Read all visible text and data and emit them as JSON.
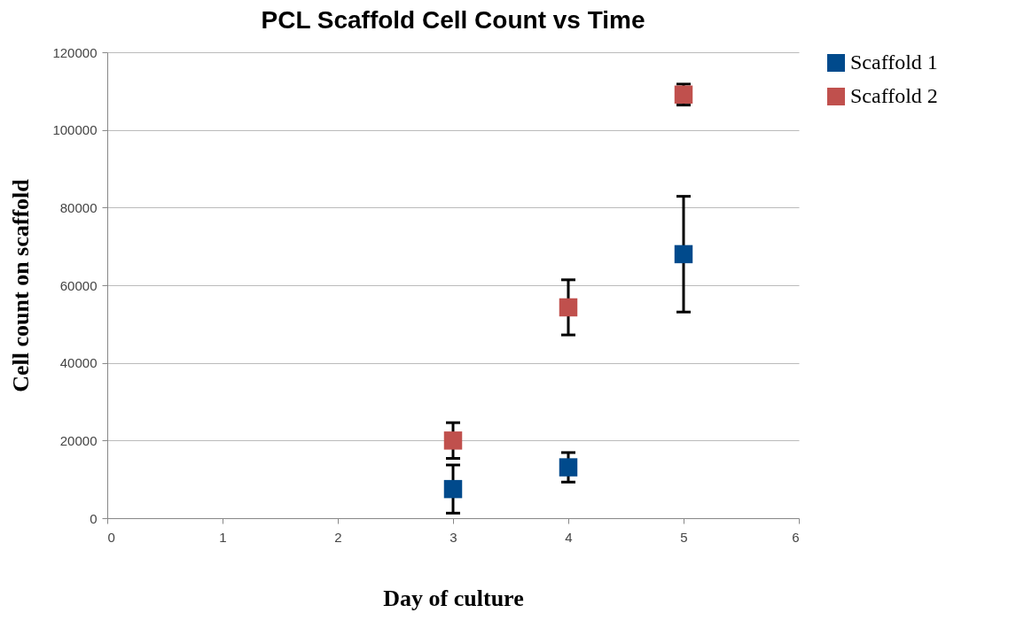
{
  "chart_data": {
    "type": "scatter",
    "title": "PCL Scaffold Cell Count vs Time",
    "xlabel": "Day of culture",
    "ylabel": "Cell count on scaffold",
    "x": [
      3,
      4,
      5
    ],
    "series": [
      {
        "name": "Scaffold 1",
        "color": "#004a8c",
        "values": [
          7500,
          13100,
          68000
        ],
        "errors": [
          6200,
          3800,
          14900
        ]
      },
      {
        "name": "Scaffold 2",
        "color": "#c0504d",
        "values": [
          20000,
          54300,
          109100
        ],
        "errors": [
          4600,
          7100,
          2700
        ]
      }
    ],
    "xlim": [
      0,
      6
    ],
    "xticks": [
      0,
      1,
      2,
      3,
      4,
      5,
      6
    ],
    "ylim": [
      0,
      120000
    ],
    "yticks": [
      0,
      20000,
      40000,
      60000,
      80000,
      100000,
      120000
    ],
    "grid": "y",
    "legend": "right",
    "marker": "square"
  }
}
